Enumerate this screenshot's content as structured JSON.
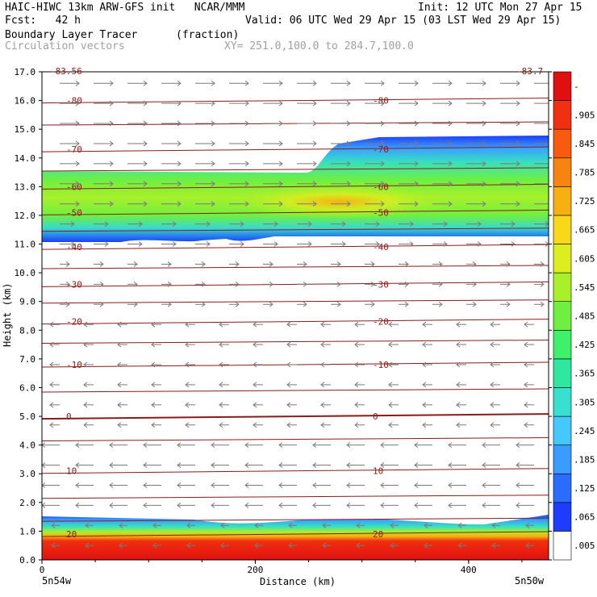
{
  "header": {
    "line1_left": "HAIC-HIWC 13km ARW-GFS init   NCAR/MMM",
    "line1_right": "Init: 12 UTC Mon 27 Apr 15",
    "line2_left": "Fcst:   42 h",
    "line2_right": "Valid: 06 UTC Wed 29 Apr 15 (03 LST Wed 29 Apr 15)",
    "field_name": "Boundary Layer Tracer",
    "field_units": "(fraction)",
    "vectors_label": "Circulation vectors",
    "cross_section": "XY= 251.0,100.0 to 284.7,100.0"
  },
  "chart_data": {
    "type": "heatmap",
    "ylabel": "Height (km)",
    "xlabel": "Distance (km)",
    "yticks": [
      "0.0",
      "1.0",
      "2.0",
      "3.0",
      "4.0",
      "5.0",
      "6.0",
      "7.0",
      "8.0",
      "9.0",
      "10.0",
      "11.0",
      "12.0",
      "13.0",
      "14.0",
      "15.0",
      "16.0",
      "17.0"
    ],
    "xticks": [
      "0",
      "200",
      "400"
    ],
    "ylim": [
      0,
      17
    ],
    "xlim": [
      0,
      475
    ],
    "endpoint_left": "5n54w",
    "endpoint_right": "5n50w",
    "colorbar_labels": [
      ".005",
      ".065",
      ".125",
      ".185",
      ".245",
      ".305",
      ".365",
      ".425",
      ".485",
      ".545",
      ".605",
      ".665",
      ".725",
      ".785",
      ".845",
      ".905",
      "-"
    ],
    "colorbar_colors": [
      "#ffffff",
      "#1e3cff",
      "#2a6cff",
      "#3a9cff",
      "#44c8ff",
      "#37e0d0",
      "#2ee8a0",
      "#3ff06a",
      "#6ff040",
      "#a8f02a",
      "#dcee1e",
      "#f8d818",
      "#f8b010",
      "#f88410",
      "#f85a10",
      "#f03010",
      "#e01010"
    ],
    "temperature_contours": [
      {
        "label": "-80",
        "km": 16.0
      },
      {
        "label": "-70",
        "km": 14.3
      },
      {
        "label": "-60",
        "km": 13.0
      },
      {
        "label": "-50",
        "km": 12.1
      },
      {
        "label": "-40",
        "km": 10.9
      },
      {
        "label": "-30",
        "km": 9.6
      },
      {
        "label": "-20",
        "km": 8.3
      },
      {
        "label": "-10",
        "km": 6.8
      },
      {
        "label": "0",
        "km": 5.0
      },
      {
        "label": "10",
        "km": 3.1
      },
      {
        "label": "20",
        "km": 0.9
      }
    ],
    "corner_labels": {
      "top_left": "-83.56",
      "top_right": "-83.7"
    }
  }
}
